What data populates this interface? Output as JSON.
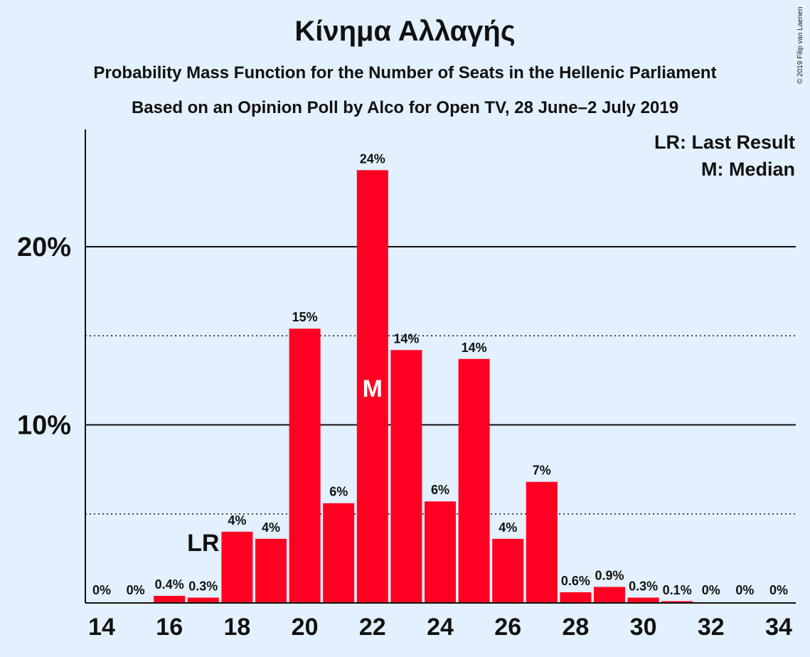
{
  "title": "Κίνημα Αλλαγής",
  "subtitle1": "Probability Mass Function for the Number of Seats in the Hellenic Parliament",
  "subtitle2": "Based on an Opinion Poll by Alco for Open TV, 28 June–2 July 2019",
  "copyright": "© 2019 Filip van Laenen",
  "colors": {
    "bar": "#ff0022",
    "background": "#e3f0fd",
    "text": "#111111"
  },
  "chart_data": {
    "type": "bar",
    "title": "Κίνημα Αλλαγής",
    "x": [
      14,
      15,
      16,
      17,
      18,
      19,
      20,
      21,
      22,
      23,
      24,
      25,
      26,
      27,
      28,
      29,
      30,
      31,
      32,
      33,
      34
    ],
    "values": [
      0,
      0,
      0.4,
      0.3,
      4.0,
      3.6,
      15.4,
      5.6,
      24.3,
      14.2,
      5.7,
      13.7,
      3.6,
      6.8,
      0.6,
      0.9,
      0.3,
      0.1,
      0,
      0,
      0
    ],
    "labels": [
      "0%",
      "0%",
      "0.4%",
      "0.3%",
      "4%",
      "4%",
      "15%",
      "6%",
      "24%",
      "14%",
      "6%",
      "14%",
      "4%",
      "7%",
      "0.6%",
      "0.9%",
      "0.3%",
      "0.1%",
      "0%",
      "0%",
      "0%"
    ],
    "x_tick_labels": [
      "14",
      "16",
      "18",
      "20",
      "22",
      "24",
      "26",
      "28",
      "30",
      "32",
      "34"
    ],
    "y_ticks": [
      {
        "value": 10,
        "label": "10%"
      },
      {
        "value": 20,
        "label": "20%"
      }
    ],
    "y_minor_gridlines": [
      5,
      15
    ],
    "ylim": [
      0,
      26.5
    ],
    "last_result": {
      "x": 17,
      "marker": "LR"
    },
    "median": {
      "x": 22,
      "marker": "M"
    },
    "legend": [
      "LR: Last Result",
      "M: Median"
    ],
    "legend_position": "top-right"
  }
}
